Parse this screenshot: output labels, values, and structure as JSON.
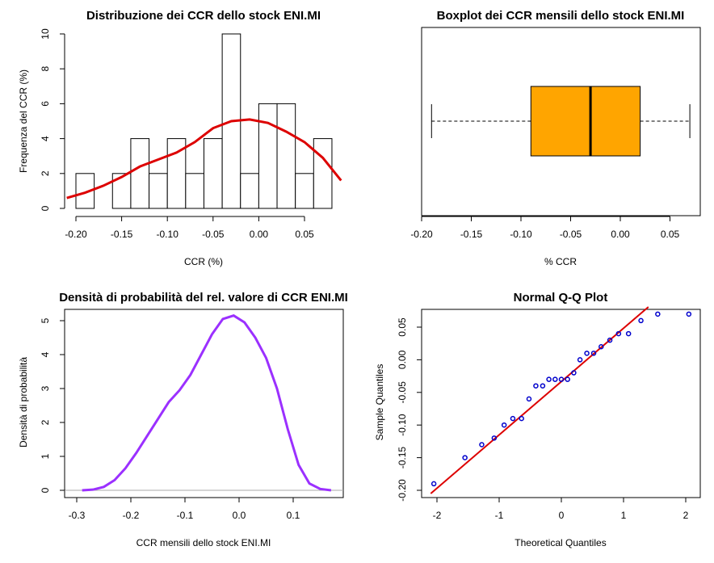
{
  "chart_data": [
    {
      "type": "histogram",
      "title": "Distribuzione dei CCR dello stock ENI.MI",
      "xlabel": "CCR (%)",
      "ylabel": "Frequenza del CCR (%)",
      "x_ticks": [
        "-0.20",
        "-0.15",
        "-0.10",
        "-0.05",
        "0.00",
        "0.05"
      ],
      "y_ticks": [
        "0",
        "2",
        "4",
        "6",
        "8",
        "10"
      ],
      "bars": [
        {
          "x0": -0.2,
          "x1": -0.18,
          "height": 2
        },
        {
          "x0": -0.18,
          "x1": -0.16,
          "height": 0
        },
        {
          "x0": -0.16,
          "x1": -0.14,
          "height": 2
        },
        {
          "x0": -0.14,
          "x1": -0.12,
          "height": 4
        },
        {
          "x0": -0.12,
          "x1": -0.1,
          "height": 2
        },
        {
          "x0": -0.1,
          "x1": -0.08,
          "height": 4
        },
        {
          "x0": -0.08,
          "x1": -0.06,
          "height": 2
        },
        {
          "x0": -0.06,
          "x1": -0.04,
          "height": 4
        },
        {
          "x0": -0.04,
          "x1": -0.02,
          "height": 10
        },
        {
          "x0": -0.02,
          "x1": 0.0,
          "height": 2
        },
        {
          "x0": 0.0,
          "x1": 0.02,
          "height": 6
        },
        {
          "x0": 0.02,
          "x1": 0.04,
          "height": 6
        },
        {
          "x0": 0.04,
          "x1": 0.06,
          "height": 2
        },
        {
          "x0": 0.06,
          "x1": 0.08,
          "height": 4
        }
      ],
      "density_curve": {
        "color": "#dd0000",
        "x": [
          -0.21,
          -0.19,
          -0.17,
          -0.15,
          -0.13,
          -0.11,
          -0.09,
          -0.07,
          -0.05,
          -0.03,
          -0.01,
          0.01,
          0.03,
          0.05,
          0.07,
          0.09
        ],
        "y": [
          0.6,
          0.9,
          1.3,
          1.8,
          2.4,
          2.8,
          3.2,
          3.8,
          4.6,
          5.0,
          5.1,
          4.9,
          4.4,
          3.8,
          2.9,
          1.6
        ]
      },
      "xlim": [
        -0.215,
        0.094
      ],
      "ylim": [
        0,
        10
      ]
    },
    {
      "type": "boxplot",
      "title": "Boxplot dei CCR mensili dello stock ENI.MI",
      "xlabel": "% CCR",
      "x_ticks": [
        "-0.20",
        "-0.15",
        "-0.10",
        "-0.05",
        "0.00",
        "0.05"
      ],
      "fill": "#ffa500",
      "min": -0.19,
      "q1": -0.09,
      "median": -0.03,
      "q3": 0.02,
      "max": 0.07,
      "xlim": [
        -0.2,
        0.075
      ]
    },
    {
      "type": "line",
      "title": "Densità di probabilità del rel. valore di CCR ENI.MI",
      "xlabel": "CCR mensili dello stock ENI.MI",
      "ylabel": "Densità di probabilità",
      "x_ticks": [
        "-0.3",
        "-0.2",
        "-0.1",
        "0.0",
        "0.1"
      ],
      "y_ticks": [
        "0",
        "1",
        "2",
        "3",
        "4",
        "5"
      ],
      "color": "#9b30ff",
      "x": [
        -0.29,
        -0.27,
        -0.25,
        -0.23,
        -0.21,
        -0.19,
        -0.17,
        -0.15,
        -0.13,
        -0.11,
        -0.09,
        -0.07,
        -0.05,
        -0.03,
        -0.01,
        0.01,
        0.03,
        0.05,
        0.07,
        0.09,
        0.11,
        0.13,
        0.15,
        0.17
      ],
      "y": [
        0.0,
        0.02,
        0.1,
        0.3,
        0.65,
        1.1,
        1.6,
        2.1,
        2.6,
        2.95,
        3.4,
        4.0,
        4.6,
        5.05,
        5.15,
        4.95,
        4.5,
        3.9,
        3.0,
        1.8,
        0.75,
        0.2,
        0.04,
        0.0
      ],
      "xlim": [
        -0.3,
        0.18
      ],
      "ylim": [
        -0.1,
        5.35
      ]
    },
    {
      "type": "scatter",
      "title": "Normal Q-Q Plot",
      "xlabel": "Theoretical Quantiles",
      "ylabel": "Sample Quantiles",
      "x_ticks": [
        "-2",
        "-1",
        "0",
        "1",
        "2"
      ],
      "y_ticks": [
        "-0.20",
        "-0.15",
        "-0.10",
        "-0.05",
        "0.00",
        "0.05"
      ],
      "point_color": "#0000cc",
      "line_color": "#dd0000",
      "points": [
        [
          -2.05,
          -0.19
        ],
        [
          -1.55,
          -0.15
        ],
        [
          -1.28,
          -0.13
        ],
        [
          -1.08,
          -0.12
        ],
        [
          -0.92,
          -0.1
        ],
        [
          -0.78,
          -0.09
        ],
        [
          -0.64,
          -0.09
        ],
        [
          -0.52,
          -0.06
        ],
        [
          -0.41,
          -0.04
        ],
        [
          -0.3,
          -0.04
        ],
        [
          -0.2,
          -0.03
        ],
        [
          -0.1,
          -0.03
        ],
        [
          0.0,
          -0.03
        ],
        [
          0.1,
          -0.03
        ],
        [
          0.2,
          -0.02
        ],
        [
          0.3,
          0.0
        ],
        [
          0.41,
          0.01
        ],
        [
          0.52,
          0.01
        ],
        [
          0.64,
          0.02
        ],
        [
          0.78,
          0.03
        ],
        [
          0.92,
          0.04
        ],
        [
          1.08,
          0.04
        ],
        [
          1.28,
          0.06
        ],
        [
          1.55,
          0.07
        ],
        [
          2.05,
          0.07
        ]
      ],
      "qq_line": {
        "x": [
          -2.1,
          1.4
        ],
        "y": [
          -0.205,
          0.081
        ]
      },
      "xlim": [
        -2.2,
        2.2
      ],
      "ylim": [
        -0.2,
        0.08
      ]
    }
  ]
}
